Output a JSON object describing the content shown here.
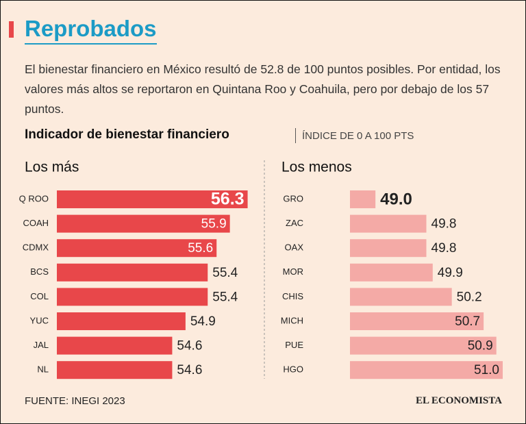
{
  "title": "Reprobados",
  "subtitle": "El bienestar financiero en México resultó de 52.8 de 100 puntos posibles. Por entidad, los valores más altos se reportaron en Quintana Roo y Coahuila, pero por debajo de los 57 puntos.",
  "indicator_title": "Indicador de bienestar financiero",
  "indicator_subtitle": "ÍNDICE DE 0 A 100 PTS",
  "source": "FUENTE: INEGI 2023",
  "brand": "EL ECONOMISTA",
  "chart_data": [
    {
      "type": "bar",
      "orientation": "horizontal",
      "title": "Los más",
      "categories": [
        "Q ROO",
        "COAH",
        "CDMX",
        "BCS",
        "COL",
        "YUC",
        "JAL",
        "NL"
      ],
      "values": [
        56.3,
        55.9,
        55.6,
        55.4,
        55.4,
        54.9,
        54.6,
        54.6
      ],
      "value_labels": [
        "56.3",
        "55.9",
        "55.6",
        "55.4",
        "55.4",
        "54.9",
        "54.6",
        "54.6"
      ],
      "color": "#e8474a",
      "xlim": [
        52,
        56.6
      ]
    },
    {
      "type": "bar",
      "orientation": "horizontal",
      "title": "Los menos",
      "categories": [
        "GRO",
        "ZAC",
        "OAX",
        "MOR",
        "CHIS",
        "MICH",
        "PUE",
        "HGO"
      ],
      "values": [
        49.0,
        49.8,
        49.8,
        49.9,
        50.2,
        50.7,
        50.9,
        51.0
      ],
      "value_labels": [
        "49.0",
        "49.8",
        "49.8",
        "49.9",
        "50.2",
        "50.7",
        "50.9",
        "51.0"
      ],
      "color": "#f4aaa6",
      "xlim": [
        48.6,
        51.0
      ]
    }
  ]
}
